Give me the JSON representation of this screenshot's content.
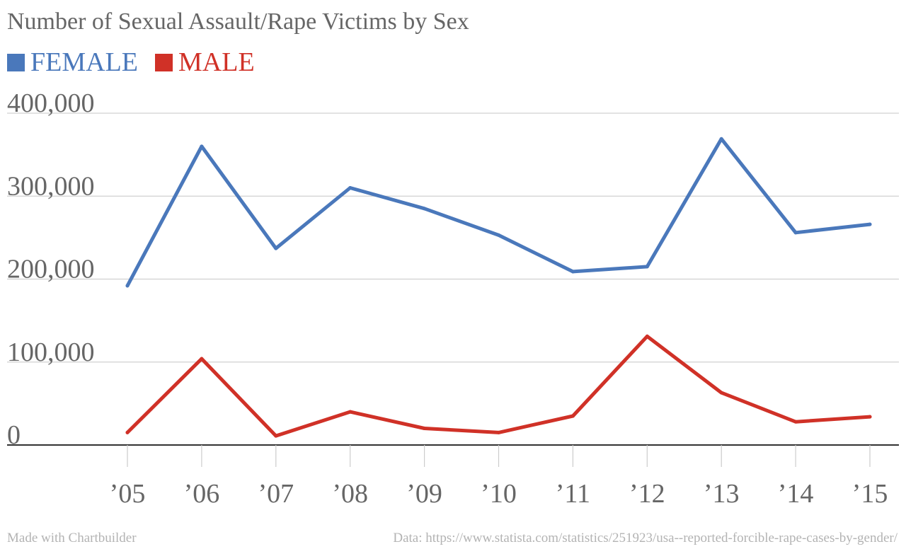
{
  "chart_data": {
    "type": "line",
    "title": "Number of Sexual Assault/Rape Victims by Sex",
    "categories": [
      "’05",
      "’06",
      "’07",
      "’08",
      "’09",
      "’10",
      "’11",
      "’12",
      "’13",
      "’14",
      "’15"
    ],
    "series": [
      {
        "name": "FEMALE",
        "color": "#4a78bb",
        "values": [
          192000,
          360000,
          237000,
          310000,
          285000,
          253000,
          209000,
          215000,
          369000,
          256000,
          266000
        ]
      },
      {
        "name": "MALE",
        "color": "#d03127",
        "values": [
          15000,
          104000,
          11000,
          40000,
          20000,
          15000,
          35000,
          131000,
          63000,
          28000,
          34000
        ]
      }
    ],
    "yticks": [
      "0",
      "100,000",
      "200,000",
      "300,000",
      "400,000"
    ],
    "ytick_values": [
      0,
      100000,
      200000,
      300000,
      400000
    ],
    "ylim": [
      0,
      400000
    ],
    "grid": true,
    "legend_position": "top-left"
  },
  "footer": {
    "left": "Made with Chartbuilder",
    "right": "Data: https://www.statista.com/statistics/251923/usa--reported-forcible-rape-cases-by-gender/"
  }
}
